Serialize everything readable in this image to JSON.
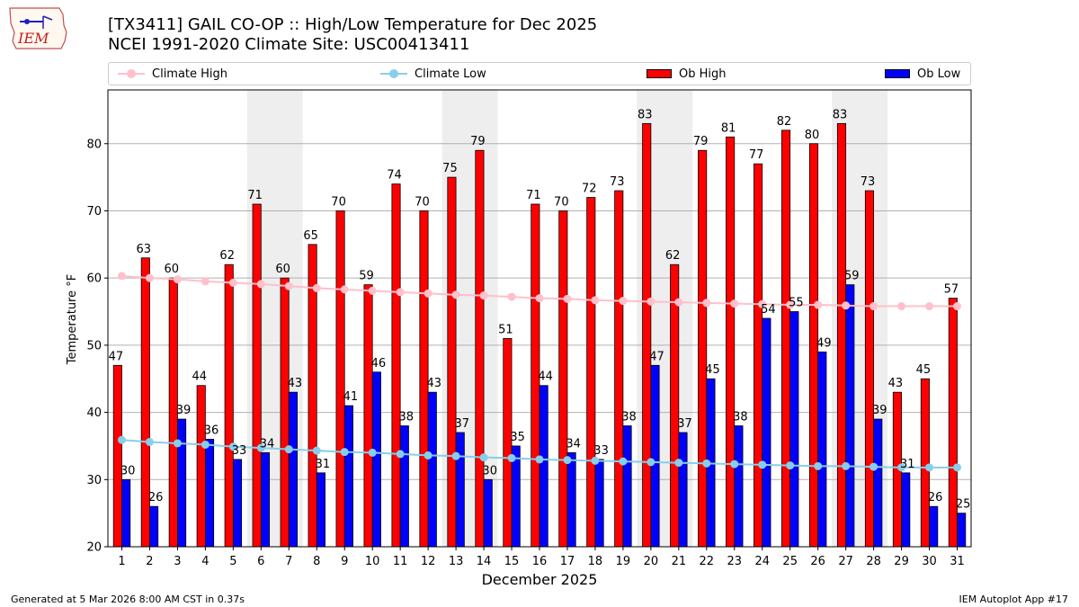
{
  "title": "[TX3411] GAIL CO-OP :: High/Low Temperature for Dec 2025",
  "subtitle": "NCEI 1991-2020 Climate Site: USC00413411",
  "logo_text": "IEM",
  "footer_left": "Generated at 5 Mar 2026 8:00 AM CST in 0.37s",
  "footer_right": "IEM Autoplot App #17",
  "colors": {
    "ob_high": "#ff0000",
    "ob_low": "#0000ff",
    "climate_high": "#ffc0cb",
    "climate_low": "#87ceeb",
    "weekend_shade": "#eeeeee",
    "grid": "#b0b0b0"
  },
  "legend": {
    "climate_high": "Climate High",
    "climate_low": "Climate Low",
    "ob_high": "Ob High",
    "ob_low": "Ob Low"
  },
  "chart_data": {
    "type": "bar",
    "xlabel": "December 2025",
    "ylabel": "Temperature °F",
    "ylim": [
      20,
      88
    ],
    "yticks": [
      20,
      30,
      40,
      50,
      60,
      70,
      80
    ],
    "grid": "horizontal",
    "legend_position": "top",
    "categories": [
      "1",
      "2",
      "3",
      "4",
      "5",
      "6",
      "7",
      "8",
      "9",
      "10",
      "11",
      "12",
      "13",
      "14",
      "15",
      "16",
      "17",
      "18",
      "19",
      "20",
      "21",
      "22",
      "23",
      "24",
      "25",
      "26",
      "27",
      "28",
      "29",
      "30",
      "31"
    ],
    "shaded_days": [
      [
        6,
        7
      ],
      [
        13,
        14
      ],
      [
        20,
        21
      ],
      [
        27,
        28
      ]
    ],
    "series": [
      {
        "name": "Ob High",
        "kind": "bar",
        "values": [
          47,
          63,
          60,
          44,
          62,
          71,
          60,
          65,
          70,
          59,
          74,
          70,
          75,
          79,
          51,
          71,
          70,
          72,
          73,
          83,
          62,
          79,
          81,
          77,
          82,
          80,
          83,
          73,
          43,
          45,
          57
        ]
      },
      {
        "name": "Ob Low",
        "kind": "bar",
        "values": [
          30,
          26,
          39,
          36,
          33,
          34,
          43,
          31,
          41,
          46,
          38,
          43,
          37,
          30,
          35,
          44,
          34,
          33,
          38,
          47,
          37,
          45,
          38,
          54,
          55,
          49,
          59,
          39,
          31,
          26,
          25
        ]
      },
      {
        "name": "Climate High",
        "kind": "line",
        "values": [
          60.3,
          60.0,
          59.8,
          59.5,
          59.3,
          59.1,
          58.8,
          58.5,
          58.3,
          58.1,
          57.9,
          57.7,
          57.5,
          57.4,
          57.2,
          57.0,
          56.9,
          56.7,
          56.6,
          56.5,
          56.4,
          56.3,
          56.2,
          56.1,
          56.0,
          56.0,
          55.9,
          55.8,
          55.8,
          55.8,
          55.8
        ]
      },
      {
        "name": "Climate Low",
        "kind": "line",
        "values": [
          35.9,
          35.6,
          35.4,
          35.2,
          34.9,
          34.7,
          34.5,
          34.3,
          34.1,
          34.0,
          33.8,
          33.6,
          33.5,
          33.3,
          33.2,
          33.0,
          32.9,
          32.8,
          32.7,
          32.6,
          32.5,
          32.4,
          32.3,
          32.2,
          32.1,
          32.0,
          32.0,
          31.9,
          31.8,
          31.8,
          31.8
        ]
      }
    ]
  }
}
